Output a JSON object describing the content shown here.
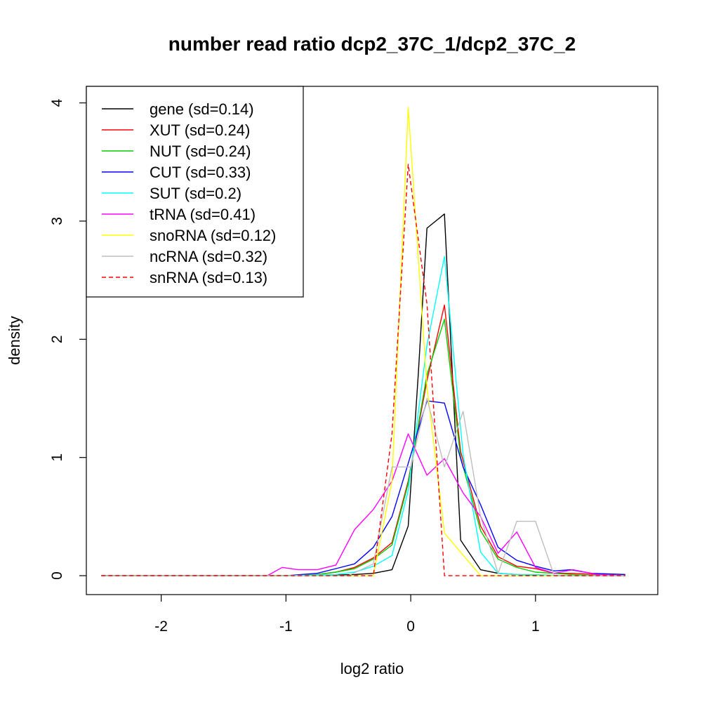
{
  "chart_data": {
    "type": "line",
    "title": "number read ratio dcp2_37C_1/dcp2_37C_2",
    "xlabel": "log2 ratio",
    "ylabel": "density",
    "xlim": [
      -2.6,
      1.98
    ],
    "ylim": [
      -0.16,
      4.14
    ],
    "x_ticks": [
      -2,
      -1,
      0,
      1
    ],
    "y_ticks": [
      0,
      1,
      2,
      3,
      4
    ],
    "grid": false,
    "legend_position": "top-left",
    "series": [
      {
        "name": "gene (sd=0.14)",
        "color": "#000000",
        "dash": "solid",
        "x": [
          -2.48,
          -1.0,
          -0.6,
          -0.45,
          -0.3,
          -0.15,
          -0.02,
          0.06,
          0.13,
          0.27,
          0.4,
          0.56,
          0.7,
          0.85,
          1.0,
          1.2,
          1.72
        ],
        "y": [
          0,
          0,
          0.005,
          0.01,
          0.02,
          0.05,
          0.42,
          1.7,
          2.94,
          3.06,
          0.3,
          0.05,
          0.02,
          0.01,
          0.005,
          0,
          0
        ]
      },
      {
        "name": "XUT (sd=0.24)",
        "color": "#FF0000",
        "dash": "solid",
        "x": [
          -2.48,
          -1.0,
          -0.75,
          -0.6,
          -0.45,
          -0.3,
          -0.15,
          -0.02,
          0.13,
          0.27,
          0.4,
          0.56,
          0.7,
          0.85,
          1.0,
          1.15,
          1.3,
          1.5,
          1.72
        ],
        "y": [
          0,
          0,
          0.01,
          0.03,
          0.07,
          0.15,
          0.28,
          0.8,
          1.65,
          2.29,
          1.05,
          0.42,
          0.16,
          0.08,
          0.06,
          0.02,
          0.02,
          0.01,
          0
        ]
      },
      {
        "name": "NUT (sd=0.24)",
        "color": "#00CD00",
        "dash": "solid",
        "x": [
          -2.48,
          -1.0,
          -0.75,
          -0.6,
          -0.45,
          -0.3,
          -0.15,
          -0.02,
          0.13,
          0.27,
          0.4,
          0.56,
          0.7,
          0.85,
          1.0,
          1.15,
          1.3,
          1.5,
          1.72
        ],
        "y": [
          0,
          0,
          0.01,
          0.03,
          0.06,
          0.14,
          0.26,
          0.78,
          1.7,
          2.17,
          1.0,
          0.38,
          0.14,
          0.07,
          0.03,
          0.02,
          0.01,
          0,
          0
        ]
      },
      {
        "name": "CUT (sd=0.33)",
        "color": "#0000FF",
        "dash": "solid",
        "x": [
          -2.48,
          -1.0,
          -0.75,
          -0.6,
          -0.45,
          -0.3,
          -0.15,
          -0.02,
          0.13,
          0.27,
          0.42,
          0.56,
          0.7,
          0.85,
          1.0,
          1.15,
          1.28,
          1.45,
          1.72
        ],
        "y": [
          0,
          0,
          0.02,
          0.06,
          0.1,
          0.24,
          0.5,
          0.95,
          1.48,
          1.46,
          0.92,
          0.6,
          0.24,
          0.13,
          0.08,
          0.04,
          0.05,
          0.02,
          0.01
        ]
      },
      {
        "name": "SUT (sd=0.2)",
        "color": "#00FFFF",
        "dash": "solid",
        "x": [
          -2.48,
          -1.0,
          -0.6,
          -0.45,
          -0.3,
          -0.15,
          -0.02,
          0.13,
          0.27,
          0.42,
          0.56,
          0.7,
          0.85,
          1.0,
          1.2,
          1.72
        ],
        "y": [
          0,
          0,
          0.01,
          0.03,
          0.08,
          0.17,
          0.72,
          1.95,
          2.7,
          1.02,
          0.2,
          0.02,
          0.01,
          0.01,
          0,
          0
        ]
      },
      {
        "name": "tRNA (sd=0.41)",
        "color": "#FF00FF",
        "dash": "solid",
        "x": [
          -2.48,
          -1.15,
          -1.03,
          -0.9,
          -0.75,
          -0.6,
          -0.45,
          -0.3,
          -0.15,
          -0.02,
          0.13,
          0.27,
          0.42,
          0.56,
          0.7,
          0.85,
          1.0,
          1.15,
          1.3,
          1.5,
          1.72
        ],
        "y": [
          0,
          0,
          0.07,
          0.05,
          0.05,
          0.09,
          0.39,
          0.56,
          0.8,
          1.2,
          0.85,
          0.99,
          0.7,
          0.5,
          0.19,
          0.37,
          0.07,
          0.02,
          0.05,
          0.01,
          0
        ]
      },
      {
        "name": "snoRNA (sd=0.12)",
        "color": "#FFFF00",
        "dash": "solid",
        "x": [
          -2.48,
          -0.3,
          -0.15,
          -0.02,
          0.13,
          0.27,
          0.56,
          1.72
        ],
        "y": [
          0,
          0,
          0.8,
          3.96,
          1.6,
          0.36,
          0,
          0
        ]
      },
      {
        "name": "ncRNA (sd=0.32)",
        "color": "#BEBEBE",
        "dash": "solid",
        "x": [
          -2.48,
          -0.5,
          -0.3,
          -0.15,
          0.0,
          0.13,
          0.27,
          0.42,
          0.56,
          0.7,
          0.85,
          1.0,
          1.15,
          1.3,
          1.72
        ],
        "y": [
          0,
          0,
          0.1,
          0.92,
          0.92,
          1.5,
          0.92,
          1.39,
          0.5,
          0.02,
          0.46,
          0.46,
          0,
          0,
          0
        ]
      },
      {
        "name": "snRNA (sd=0.13)",
        "color": "#FF0000",
        "dash": "dashed",
        "x": [
          -2.48,
          -0.3,
          -0.15,
          -0.02,
          0.13,
          0.27,
          1.72
        ],
        "y": [
          0,
          0,
          1.2,
          3.48,
          2.3,
          0,
          0
        ]
      }
    ]
  }
}
